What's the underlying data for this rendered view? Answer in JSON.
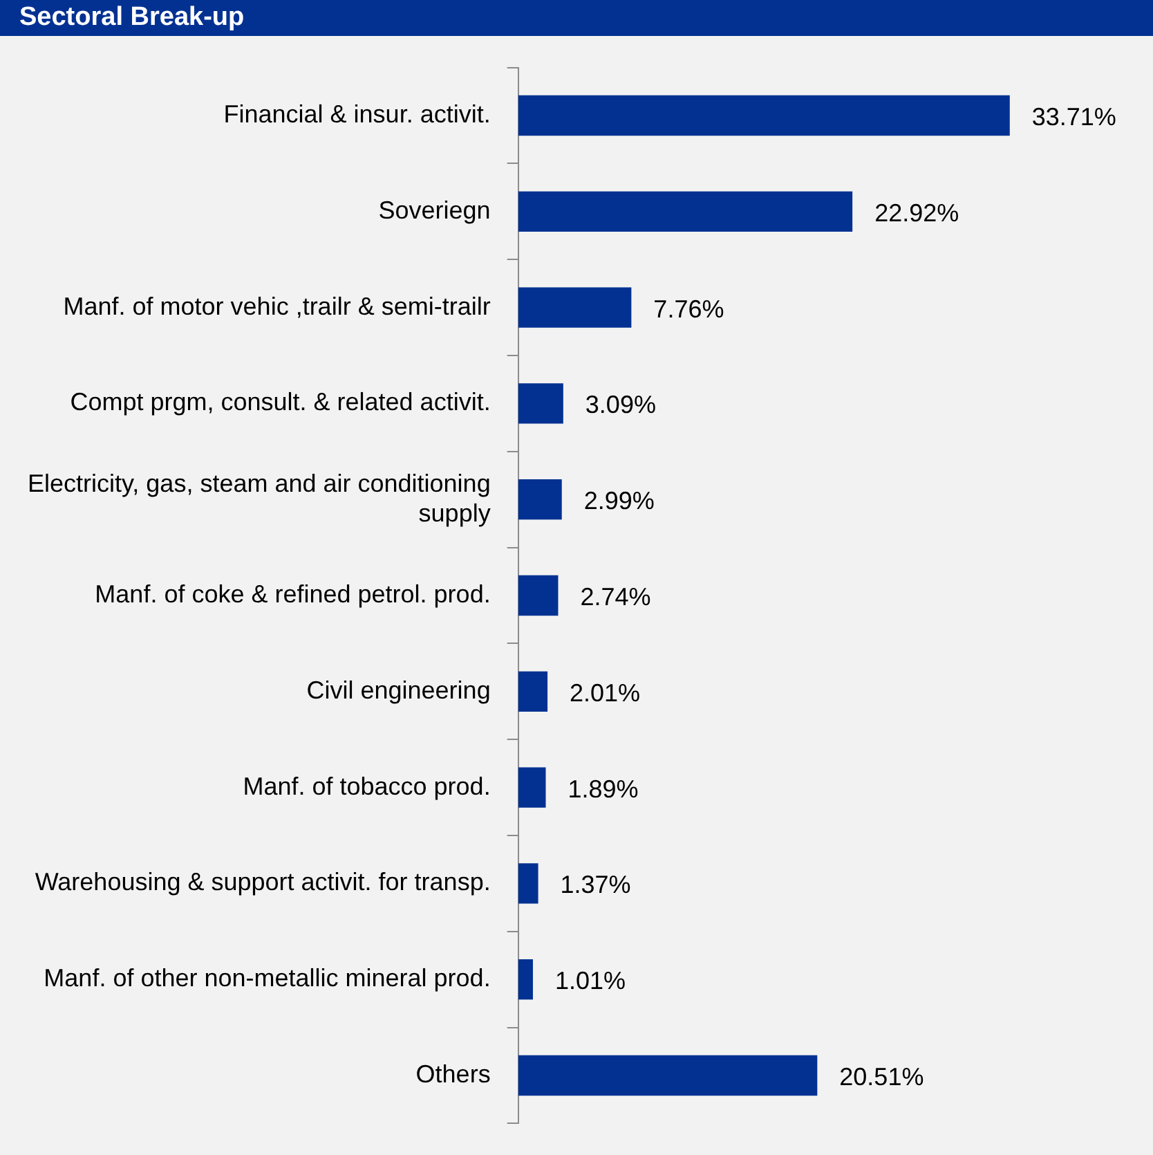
{
  "chart_data": {
    "type": "bar",
    "orientation": "horizontal",
    "title": "Sectoral Break-up",
    "categories": [
      "Financial & insur. activit.",
      "Soveriegn",
      "Manf. of motor vehic ,trailr & semi-trailr",
      "Compt prgm, consult. & related activit.",
      "Electricity, gas, steam and air conditioning supply",
      "Manf. of coke & refined petrol. prod.",
      "Civil engineering",
      "Manf. of tobacco prod.",
      "Warehousing & support activit. for transp.",
      "Manf. of other non-metallic mineral prod.",
      "Others"
    ],
    "values": [
      33.71,
      22.92,
      7.76,
      3.09,
      2.99,
      2.74,
      2.01,
      1.89,
      1.37,
      1.01,
      20.51
    ],
    "value_labels": [
      "33.71%",
      "22.92%",
      "7.76%",
      "3.09%",
      "2.99%",
      "2.74%",
      "2.01%",
      "1.89%",
      "1.37%",
      "1.01%",
      "20.51%"
    ],
    "color": "#033192",
    "grid": false,
    "legend": false,
    "tick_labels": "y"
  }
}
